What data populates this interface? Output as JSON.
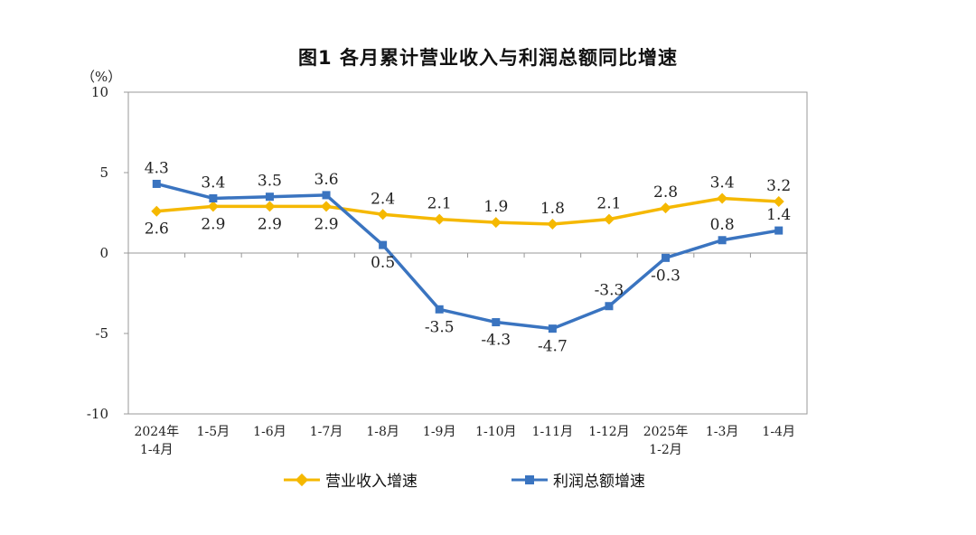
{
  "chart_data": {
    "type": "line",
    "title": "图1  各月累计营业收入与利润总额同比增速",
    "unit_label": "（%）",
    "xlabel": "",
    "ylabel": "%",
    "ylim": [
      -10,
      10
    ],
    "yticks": [
      10,
      5,
      0,
      -5,
      -10
    ],
    "grid": false,
    "legend_position": "bottom",
    "categories": [
      [
        "2024年",
        "1-4月"
      ],
      [
        "1-5月"
      ],
      [
        "1-6月"
      ],
      [
        "1-7月"
      ],
      [
        "1-8月"
      ],
      [
        "1-9月"
      ],
      [
        "1-10月"
      ],
      [
        "1-11月"
      ],
      [
        "1-12月"
      ],
      [
        "2025年",
        "1-2月"
      ],
      [
        "1-3月"
      ],
      [
        "1-4月"
      ]
    ],
    "series": [
      {
        "name": "营业收入增速",
        "color": "#F5B800",
        "marker": "diamond",
        "values": [
          2.6,
          2.9,
          2.9,
          2.9,
          2.4,
          2.1,
          1.9,
          1.8,
          2.1,
          2.8,
          3.4,
          3.2
        ],
        "labels": [
          "2.6",
          "2.9",
          "2.9",
          "2.9",
          "2.4",
          "2.1",
          "1.9",
          "1.8",
          "2.1",
          "2.8",
          "3.4",
          "3.2"
        ],
        "label_sides": [
          "below",
          "below",
          "below",
          "below",
          "above",
          "above",
          "above",
          "above",
          "above",
          "above",
          "above",
          "above"
        ]
      },
      {
        "name": "利润总额增速",
        "color": "#3A74C0",
        "marker": "square",
        "values": [
          4.3,
          3.4,
          3.5,
          3.6,
          0.5,
          -3.5,
          -4.3,
          -4.7,
          -3.3,
          -0.3,
          0.8,
          1.4
        ],
        "labels": [
          "4.3",
          "3.4",
          "3.5",
          "3.6",
          "0.5",
          "-3.5",
          "-4.3",
          "-4.7",
          "-3.3",
          "-0.3",
          "0.8",
          "1.4"
        ],
        "label_sides": [
          "above",
          "above",
          "above",
          "above",
          "below",
          "below",
          "below",
          "below",
          "above",
          "below",
          "above",
          "above"
        ]
      }
    ]
  }
}
